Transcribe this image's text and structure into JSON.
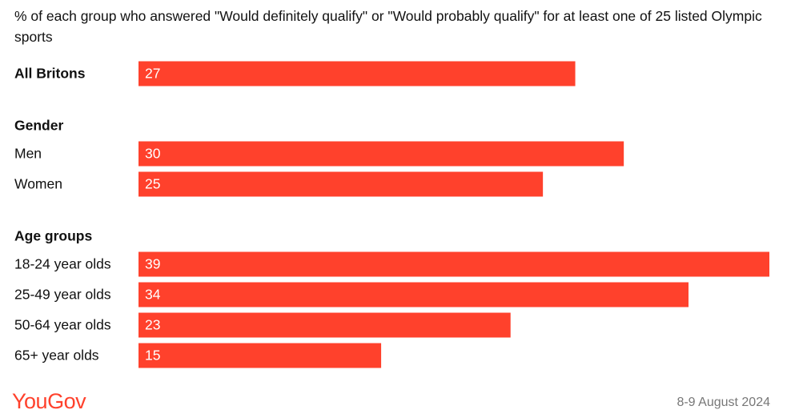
{
  "chart_data": {
    "type": "bar",
    "orientation": "horizontal",
    "title": "% of each group who answered \"Would definitely qualify\" or \"Would probably qualify\" for at least one of 25 listed Olympic sports",
    "color": "#ff412c",
    "groups": [
      {
        "categories": [
          "All Britons"
        ],
        "values": [
          27
        ]
      },
      {
        "title": "Gender",
        "categories": [
          "Men",
          "Women"
        ],
        "values": [
          30,
          25
        ]
      },
      {
        "title": "Age groups",
        "categories": [
          "18-24 year olds",
          "25-49 year olds",
          "50-64 year olds",
          "65+ year olds"
        ],
        "values": [
          39,
          34,
          23,
          15
        ]
      }
    ],
    "brand": "YouGov",
    "date": "8-9 August 2024"
  }
}
